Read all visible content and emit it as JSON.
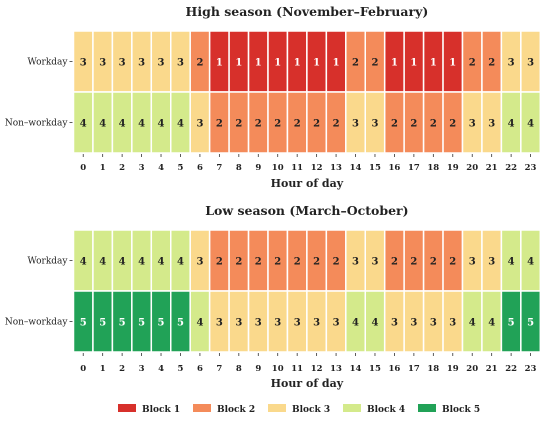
{
  "chart_data": {
    "type": "heatmap",
    "colors": {
      "1": "#D7302B",
      "2": "#F48B5A",
      "3": "#FAD98C",
      "4": "#D4EA8B",
      "5": "#21A257"
    },
    "legend": {
      "placement": "bottom",
      "entries": [
        {
          "label": "Block 1",
          "value": 1
        },
        {
          "label": "Block 2",
          "value": 2
        },
        {
          "label": "Block 3",
          "value": 3
        },
        {
          "label": "Block 4",
          "value": 4
        },
        {
          "label": "Block 5",
          "value": 5
        }
      ]
    },
    "panels": [
      {
        "title": "High season (November–February)",
        "xlabel": "Hour of day",
        "x": [
          0,
          1,
          2,
          3,
          4,
          5,
          6,
          7,
          8,
          9,
          10,
          11,
          12,
          13,
          14,
          15,
          16,
          17,
          18,
          19,
          20,
          21,
          22,
          23
        ],
        "x_tick_labels": [
          "0",
          "1",
          "2",
          "3",
          "4",
          "5",
          "6",
          "7",
          "8",
          "9",
          "10",
          "11",
          "12",
          "13",
          "14",
          "15",
          "16",
          "17",
          "18",
          "19",
          "20",
          "21",
          "22",
          "23"
        ],
        "rows": [
          {
            "label": "Workday",
            "values": [
              3,
              3,
              3,
              3,
              3,
              3,
              2,
              1,
              1,
              1,
              1,
              1,
              1,
              1,
              2,
              2,
              1,
              1,
              1,
              1,
              2,
              2,
              3,
              3
            ]
          },
          {
            "label": "Non–workday",
            "values": [
              4,
              4,
              4,
              4,
              4,
              4,
              3,
              2,
              2,
              2,
              2,
              2,
              2,
              2,
              3,
              3,
              2,
              2,
              2,
              2,
              3,
              3,
              4,
              4
            ]
          }
        ]
      },
      {
        "title": "Low season (March–October)",
        "xlabel": "Hour of day",
        "x": [
          0,
          1,
          2,
          3,
          4,
          5,
          6,
          7,
          8,
          9,
          10,
          11,
          12,
          13,
          14,
          15,
          16,
          17,
          18,
          19,
          20,
          21,
          22,
          23
        ],
        "x_tick_labels": [
          "0",
          "1",
          "2",
          "3",
          "4",
          "5",
          "6",
          "7",
          "8",
          "9",
          "10",
          "11",
          "12",
          "13",
          "14",
          "15",
          "16",
          "17",
          "18",
          "19",
          "20",
          "21",
          "22",
          "23"
        ],
        "rows": [
          {
            "label": "Workday",
            "values": [
              4,
              4,
              4,
              4,
              4,
              4,
              3,
              2,
              2,
              2,
              2,
              2,
              2,
              2,
              3,
              3,
              2,
              2,
              2,
              2,
              3,
              3,
              4,
              4
            ]
          },
          {
            "label": "Non–workday",
            "values": [
              5,
              5,
              5,
              5,
              5,
              5,
              4,
              3,
              3,
              3,
              3,
              3,
              3,
              3,
              4,
              4,
              3,
              3,
              3,
              3,
              4,
              4,
              5,
              5
            ]
          }
        ]
      }
    ]
  }
}
